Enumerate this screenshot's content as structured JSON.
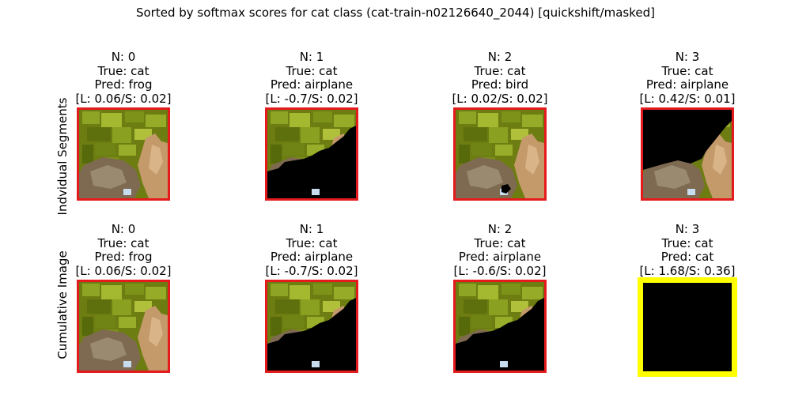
{
  "chart_data": {
    "type": "image-grid",
    "title": "Sorted by softmax scores for cat class (cat-train-n02126640_2044) [quickshift/masked]",
    "rows": [
      {
        "label": "Indvidual Segments",
        "cells": [
          {
            "n": "N: 0",
            "true": "True: cat",
            "pred": "Pred: frog",
            "scores": "[L: 0.06/S: 0.02]",
            "mask": "none",
            "border": "#e41a1c"
          },
          {
            "n": "N: 1",
            "true": "True: cat",
            "pred": "Pred: airplane",
            "scores": "[L: -0.7/S: 0.02]",
            "mask": "lower",
            "border": "#e41a1c"
          },
          {
            "n": "N: 2",
            "true": "True: cat",
            "pred": "Pred: bird",
            "scores": "[L: 0.02/S: 0.02]",
            "mask": "small",
            "border": "#e41a1c"
          },
          {
            "n": "N: 3",
            "true": "True: cat",
            "pred": "Pred: airplane",
            "scores": "[L: 0.42/S: 0.01]",
            "mask": "upper",
            "border": "#e41a1c"
          }
        ]
      },
      {
        "label": "Cumulative Image",
        "cells": [
          {
            "n": "N: 0",
            "true": "True: cat",
            "pred": "Pred: frog",
            "scores": "[L: 0.06/S: 0.02]",
            "mask": "none",
            "border": "#e41a1c"
          },
          {
            "n": "N: 1",
            "true": "True: cat",
            "pred": "Pred: airplane",
            "scores": "[L: -0.7/S: 0.02]",
            "mask": "lower",
            "border": "#e41a1c"
          },
          {
            "n": "N: 2",
            "true": "True: cat",
            "pred": "Pred: airplane",
            "scores": "[L: -0.6/S: 0.02]",
            "mask": "lower",
            "border": "#e41a1c"
          },
          {
            "n": "N: 3",
            "true": "True: cat",
            "pred": "Pred: cat",
            "scores": "[L: 1.68/S: 0.36]",
            "mask": "full",
            "border": "#ffff00"
          }
        ]
      }
    ]
  }
}
